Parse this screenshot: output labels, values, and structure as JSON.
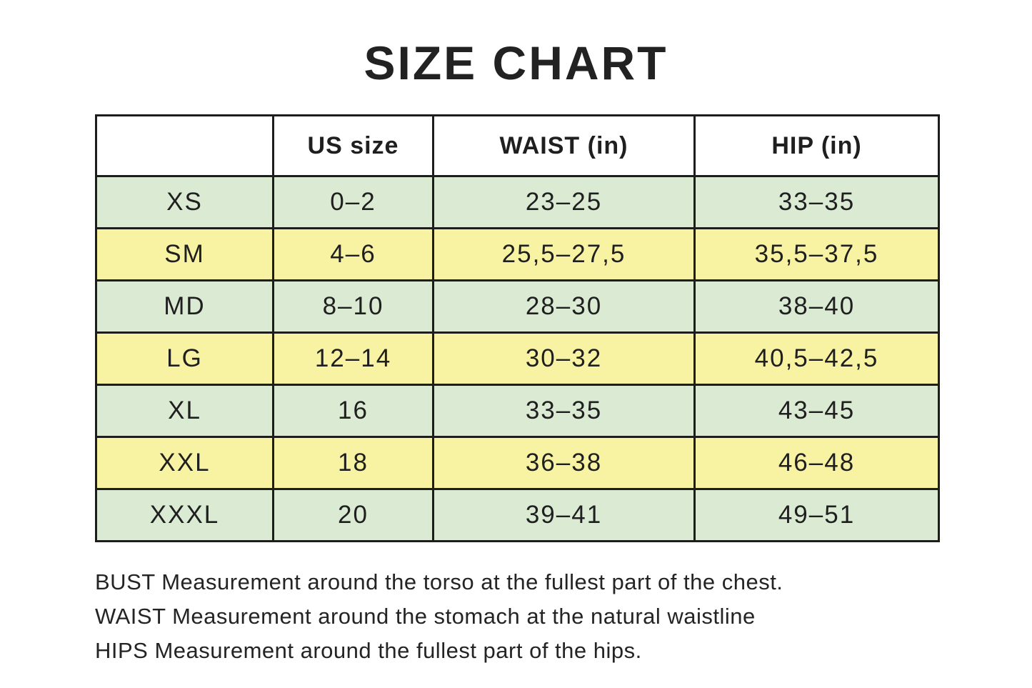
{
  "title": "SIZE CHART",
  "chart_data": {
    "type": "table",
    "title": "SIZE CHART",
    "columns": [
      "US size",
      "WAIST (in)",
      "HIP (in)"
    ],
    "row_header_column_label": "",
    "rows": [
      [
        "XS",
        "0–2",
        "23–25",
        "33–35"
      ],
      [
        "SM",
        "4–6",
        "25,5–27,5",
        "35,5–37,5"
      ],
      [
        "MD",
        "8–10",
        "28–30",
        "38–40"
      ],
      [
        "LG",
        "12–14",
        "30–32",
        "40,5–42,5"
      ],
      [
        "XL",
        "16",
        "33–35",
        "43–45"
      ],
      [
        "XXL",
        "18",
        "36–38",
        "46–48"
      ],
      [
        "XXXL",
        "20",
        "39–41",
        "49–51"
      ]
    ],
    "row_stripe_colors": [
      "#dbead3",
      "#f8f2a3"
    ],
    "layout": "header row spans only the last three columns; first column has a blank borderless corner cell above it"
  },
  "notes": [
    "BUST Measurement around the torso at the fullest part of the chest.",
    "WAIST Measurement around the stomach at the natural waistline",
    "HIPS Measurement around the fullest part of the hips."
  ],
  "colors": {
    "row_green": "#dbead3",
    "row_yellow": "#f8f2a3",
    "border": "#1d1d1b",
    "text": "#1f1f1f",
    "background": "#ffffff"
  }
}
